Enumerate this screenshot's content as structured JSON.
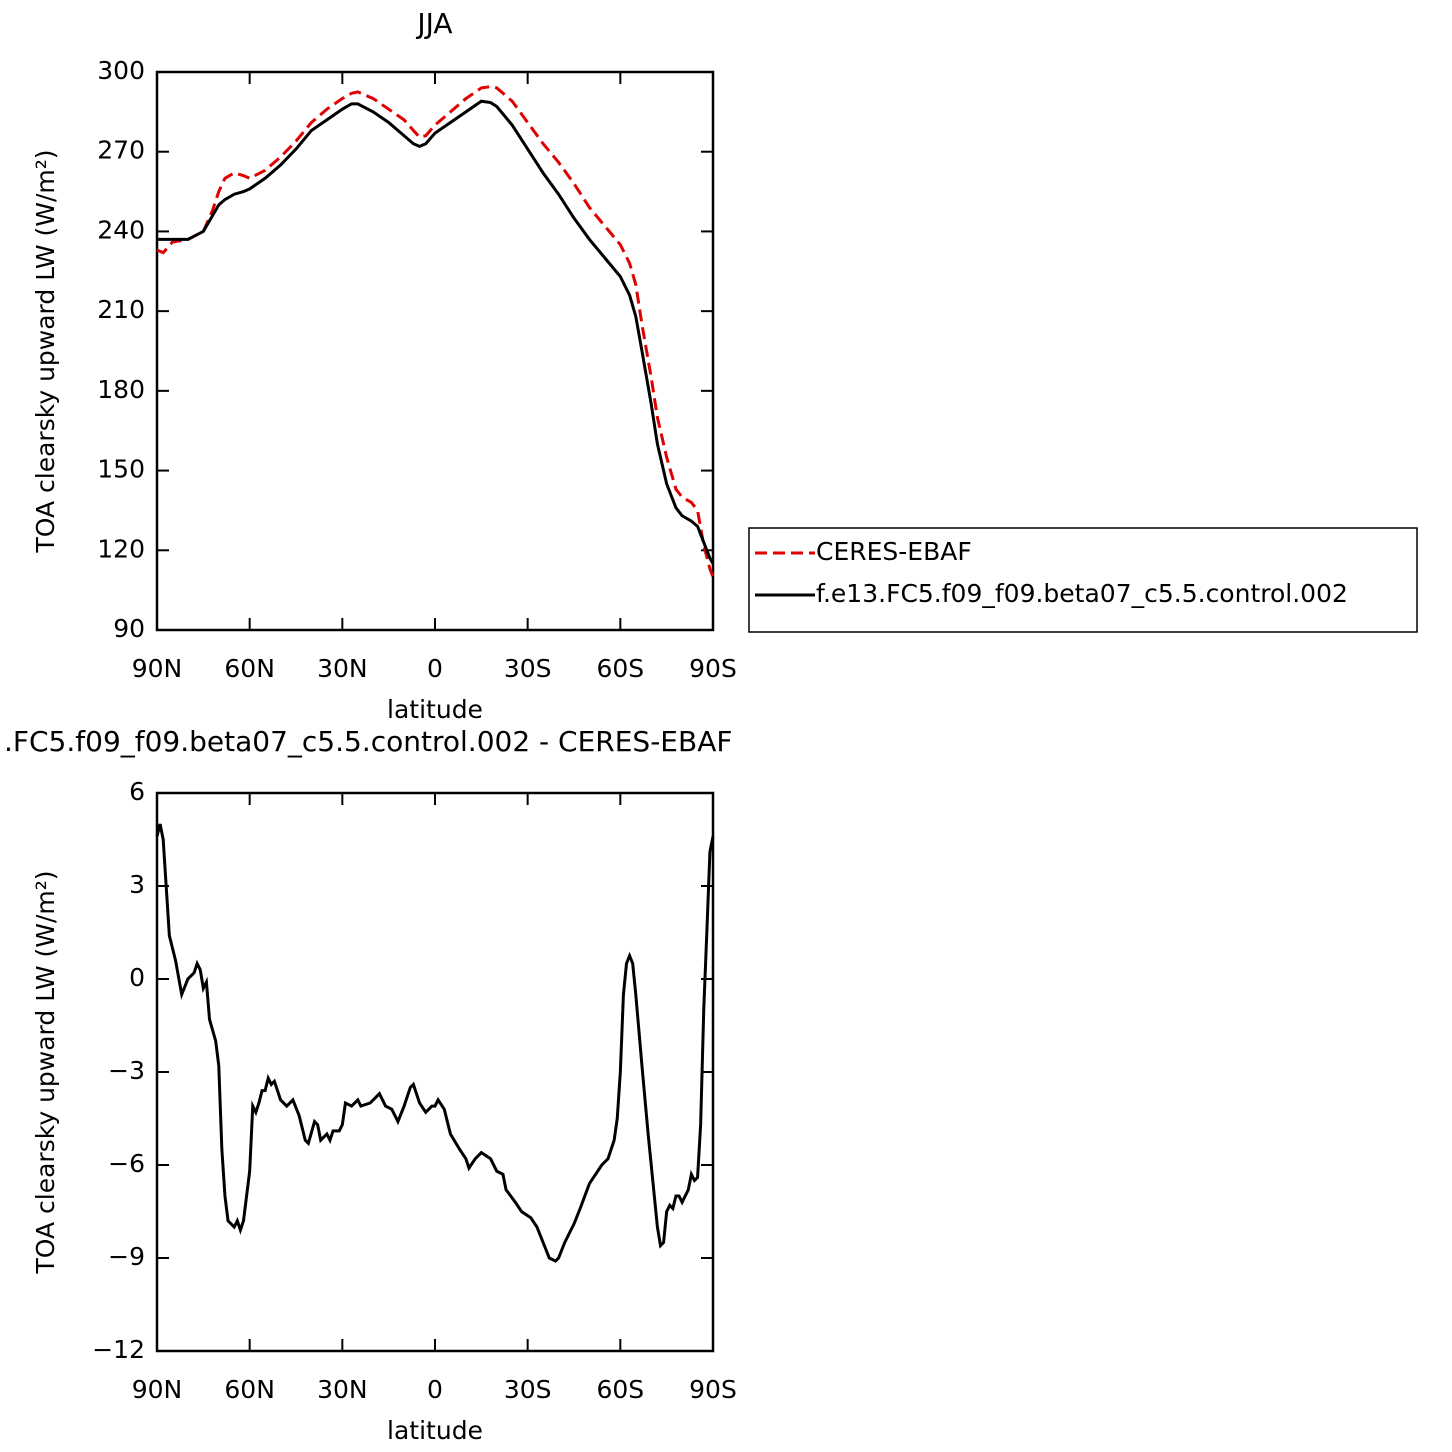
{
  "chart_data": [
    {
      "type": "line",
      "title": "JJA",
      "xlabel": "latitude",
      "ylabel": "TOA clearsky upward LW (W/m²)",
      "xlim": [
        90,
        -90
      ],
      "xticks": [
        {
          "value": 90,
          "label": "90N"
        },
        {
          "value": 60,
          "label": "60N"
        },
        {
          "value": 30,
          "label": "30N"
        },
        0,
        {
          "value": -30,
          "label": "30S"
        },
        {
          "value": -60,
          "label": "60S"
        },
        {
          "value": -90,
          "label": "90S"
        }
      ],
      "ylim": [
        90,
        300
      ],
      "yticks": [
        90,
        120,
        150,
        180,
        210,
        240,
        270,
        300
      ],
      "legend": "outside-right",
      "x": [
        90,
        88,
        85,
        80,
        75,
        72,
        70,
        68,
        65,
        62,
        60,
        55,
        50,
        45,
        40,
        35,
        30,
        27,
        25,
        20,
        15,
        10,
        7,
        5,
        3,
        0,
        -5,
        -10,
        -15,
        -18,
        -20,
        -25,
        -30,
        -35,
        -40,
        -45,
        -50,
        -55,
        -60,
        -63,
        -65,
        -67,
        -70,
        -72,
        -75,
        -78,
        -80,
        -83,
        -85,
        -87,
        -89,
        -90
      ],
      "series": [
        {
          "name": "CERES-EBAF",
          "color": "#e00000",
          "linestyle": "dashed",
          "values": [
            233,
            232,
            236,
            237,
            240,
            248,
            255,
            260,
            262,
            261,
            260,
            263,
            268,
            274,
            281,
            286,
            290,
            292,
            292.5,
            290,
            286,
            282,
            278,
            275.5,
            276,
            280,
            285,
            290,
            294,
            294.5,
            294,
            289,
            281,
            273,
            266,
            258,
            249,
            242,
            235,
            228,
            220,
            205,
            185,
            170,
            155,
            143,
            140,
            138,
            135,
            122,
            113,
            110
          ]
        },
        {
          "name": "f.e13.FC5.f09_f09.beta07_c5.5.control.002",
          "color": "#000000",
          "linestyle": "solid",
          "values": [
            237,
            237,
            237,
            237,
            240,
            246,
            250,
            252,
            254,
            255,
            256,
            260,
            265,
            271,
            278,
            282,
            286,
            288,
            288,
            285,
            281,
            276,
            273,
            272,
            273,
            277,
            281,
            285,
            289,
            288.5,
            287,
            280,
            271,
            262,
            254,
            245,
            237,
            230,
            223,
            216,
            208,
            195,
            175,
            160,
            145,
            136,
            133,
            131,
            129,
            123,
            117,
            115
          ]
        }
      ]
    },
    {
      "type": "line",
      "title": ".FC5.f09_f09.beta07_c5.5.control.002 - CERES-EBAF",
      "xlabel": "latitude",
      "ylabel": "TOA clearsky upward LW (W/m²)",
      "xlim": [
        90,
        -90
      ],
      "xticks": [
        {
          "value": 90,
          "label": "90N"
        },
        {
          "value": 60,
          "label": "60N"
        },
        {
          "value": 30,
          "label": "30N"
        },
        0,
        {
          "value": -30,
          "label": "30S"
        },
        {
          "value": -60,
          "label": "60S"
        },
        {
          "value": -90,
          "label": "90S"
        }
      ],
      "ylim": [
        -12,
        6
      ],
      "yticks": [
        {
          "value": -12,
          "label": "−12"
        },
        {
          "value": -9,
          "label": "−9"
        },
        {
          "value": -6,
          "label": "−6"
        },
        {
          "value": -3,
          "label": "−3"
        },
        0,
        3,
        6
      ],
      "color": "#000000",
      "x": [
        90,
        89,
        88,
        86,
        84,
        82,
        80,
        78,
        77,
        76,
        75,
        74,
        73,
        71,
        70,
        69,
        68,
        67,
        65,
        64,
        63,
        62,
        60,
        59,
        58,
        57,
        56,
        55,
        54,
        53,
        52,
        50,
        48,
        46,
        44,
        42,
        41,
        39,
        38,
        37,
        35,
        34,
        33,
        31,
        30,
        29,
        27,
        25,
        24,
        21,
        19,
        18,
        16,
        14,
        12,
        10,
        8,
        7,
        5,
        3,
        1,
        0,
        -1,
        -3,
        -5,
        -8,
        -10,
        -11,
        -13,
        -15,
        -18,
        -20,
        -22,
        -23,
        -26,
        -28,
        -31,
        -33,
        -35,
        -37,
        -39,
        -40,
        -42,
        -45,
        -47,
        -50,
        -52,
        -54,
        -56,
        -58,
        -59,
        -60,
        -61,
        -62,
        -63,
        -64,
        -65,
        -67,
        -69,
        -71,
        -72,
        -73,
        -74,
        -75,
        -76,
        -77,
        -78,
        -79,
        -80,
        -81,
        -82,
        -83,
        -84,
        -85,
        -86,
        -87,
        -88,
        -89,
        -90
      ],
      "values": [
        4.6,
        5.0,
        4.5,
        1.4,
        0.6,
        -0.5,
        0.0,
        0.2,
        0.5,
        0.3,
        -0.3,
        -0.1,
        -1.3,
        -2.0,
        -2.8,
        -5.5,
        -7.0,
        -7.8,
        -8.0,
        -7.8,
        -8.1,
        -7.8,
        -6.2,
        -4.1,
        -4.3,
        -4.0,
        -3.6,
        -3.6,
        -3.2,
        -3.4,
        -3.3,
        -3.9,
        -4.1,
        -3.9,
        -4.4,
        -5.2,
        -5.3,
        -4.6,
        -4.7,
        -5.2,
        -5.0,
        -5.2,
        -4.9,
        -4.9,
        -4.7,
        -4.0,
        -4.1,
        -3.9,
        -4.1,
        -4.0,
        -3.8,
        -3.7,
        -4.1,
        -4.2,
        -4.6,
        -4.1,
        -3.5,
        -3.4,
        -4.0,
        -4.3,
        -4.1,
        -4.1,
        -3.9,
        -4.2,
        -5.0,
        -5.5,
        -5.8,
        -6.1,
        -5.8,
        -5.6,
        -5.8,
        -6.2,
        -6.3,
        -6.8,
        -7.2,
        -7.5,
        -7.7,
        -8.0,
        -8.5,
        -9.0,
        -9.1,
        -9.0,
        -8.5,
        -7.9,
        -7.4,
        -6.6,
        -6.3,
        -6.0,
        -5.8,
        -5.2,
        -4.5,
        -3.0,
        -0.5,
        0.5,
        0.75,
        0.5,
        -0.5,
        -2.8,
        -5.0,
        -7.0,
        -8.0,
        -8.6,
        -8.5,
        -7.5,
        -7.3,
        -7.4,
        -7.0,
        -7.0,
        -7.2,
        -7.0,
        -6.8,
        -6.3,
        -6.5,
        -6.4,
        -4.7,
        -1.0,
        1.5,
        4.1,
        4.6
      ]
    }
  ]
}
